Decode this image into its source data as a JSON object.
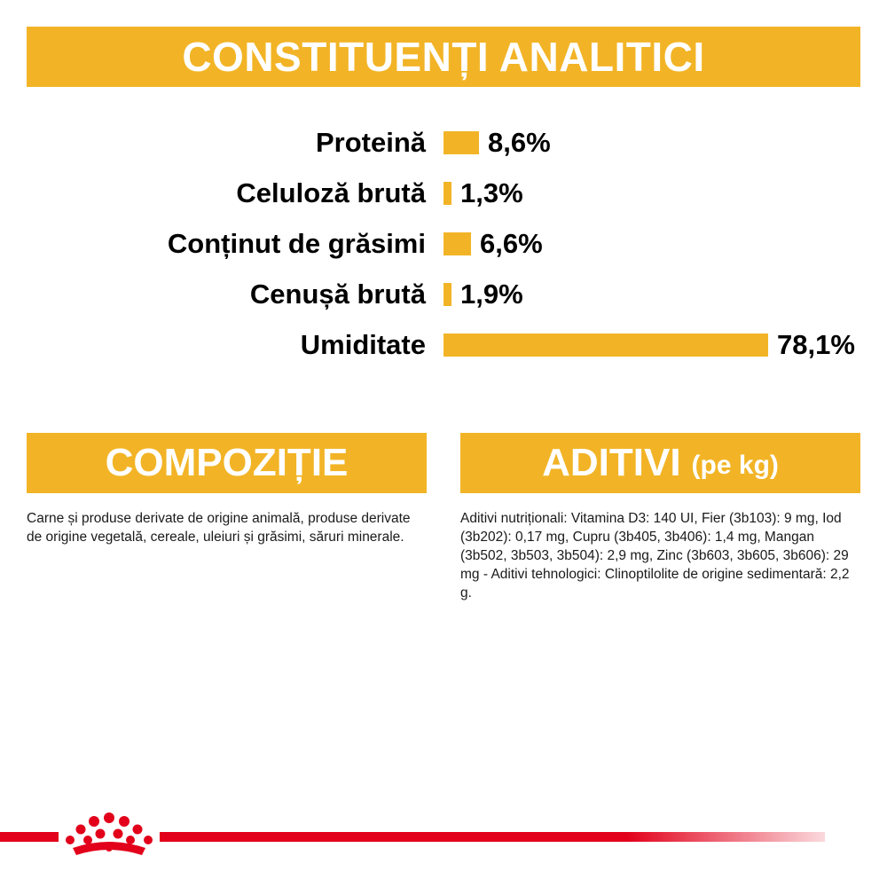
{
  "header": {
    "title": "CONSTITUENȚI ANALITICI"
  },
  "chart_data": {
    "type": "bar",
    "orientation": "horizontal",
    "categories": [
      "Proteină",
      "Celuloză brută",
      "Conținut de grăsimi",
      "Cenușă brută",
      "Umiditate"
    ],
    "values": [
      8.6,
      1.3,
      6.6,
      1.9,
      78.1
    ],
    "value_labels": [
      "8,6%",
      "1,3%",
      "6,6%",
      "1,9%",
      "78,1%"
    ],
    "unit": "%",
    "bar_color": "#f2b426",
    "xlim": [
      0,
      78.1
    ]
  },
  "composition": {
    "title": "COMPOZIȚIE",
    "text": "Carne și produse derivate de origine animală, produse derivate de origine vegetală, cereale, uleiuri și grăsimi, săruri minerale."
  },
  "additives": {
    "title": "ADITIVI",
    "subtitle": "(pe kg)",
    "text": "Aditivi nutriționali: Vitamina D3: 140 UI, Fier (3b103): 9 mg, Iod (3b202): 0,17 mg, Cupru (3b405, 3b406): 1,4 mg, Mangan (3b502, 3b503, 3b504): 2,9 mg, Zinc (3b603, 3b605, 3b606): 29 mg - Aditivi tehnologici: Clinoptilolite de origine sedimentară: 2,2 g."
  },
  "colors": {
    "accent": "#f2b426",
    "brand_red": "#e2001a"
  },
  "footer": {
    "logo_icon": "crown-icon"
  }
}
